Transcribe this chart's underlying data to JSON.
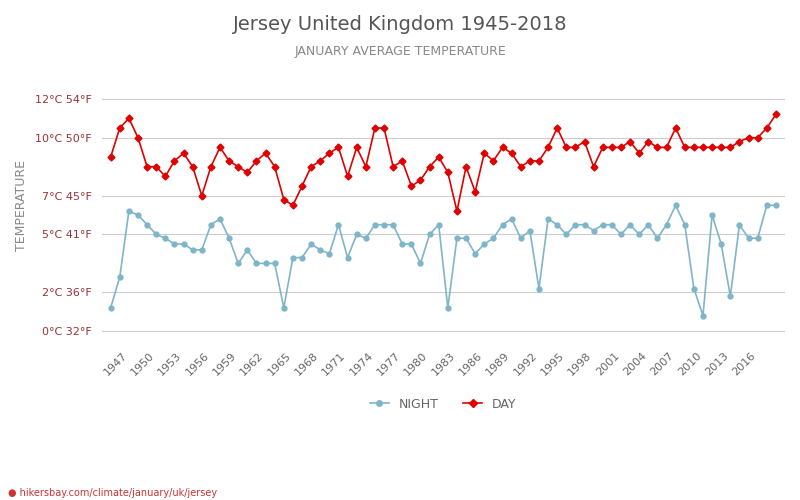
{
  "title": "Jersey United Kingdom 1945-2018",
  "subtitle": "JANUARY AVERAGE TEMPERATURE",
  "ylabel": "TEMPERATURE",
  "xlabel_url": "hikersbay.com/climate/january/uk/jersey",
  "years": [
    1945,
    1946,
    1947,
    1948,
    1949,
    1950,
    1951,
    1952,
    1953,
    1954,
    1955,
    1956,
    1957,
    1958,
    1959,
    1960,
    1961,
    1962,
    1963,
    1964,
    1965,
    1966,
    1967,
    1968,
    1969,
    1970,
    1971,
    1972,
    1973,
    1974,
    1975,
    1976,
    1977,
    1978,
    1979,
    1980,
    1981,
    1982,
    1983,
    1984,
    1985,
    1986,
    1987,
    1988,
    1989,
    1990,
    1991,
    1992,
    1993,
    1994,
    1995,
    1996,
    1997,
    1998,
    1999,
    2000,
    2001,
    2002,
    2003,
    2004,
    2005,
    2006,
    2007,
    2008,
    2009,
    2010,
    2011,
    2012,
    2013,
    2014,
    2015,
    2016,
    2017,
    2018
  ],
  "day_temps": [
    9.0,
    10.5,
    11.0,
    10.0,
    8.5,
    8.5,
    8.0,
    8.8,
    9.2,
    8.5,
    7.0,
    8.5,
    9.5,
    8.8,
    8.5,
    8.2,
    8.8,
    9.2,
    8.5,
    6.8,
    6.5,
    7.5,
    8.5,
    8.8,
    9.2,
    9.5,
    8.0,
    9.5,
    8.5,
    10.5,
    10.5,
    8.5,
    8.8,
    7.5,
    7.8,
    8.5,
    9.0,
    8.2,
    6.2,
    8.5,
    7.2,
    9.2,
    8.8,
    9.5,
    9.2,
    8.5,
    8.8,
    8.8,
    9.5,
    10.5,
    9.5,
    9.5,
    9.8,
    8.5,
    9.5,
    9.5,
    9.5,
    9.8,
    9.2,
    9.8,
    9.5,
    9.5,
    10.5,
    9.5,
    9.5,
    9.5,
    9.5,
    9.5,
    9.5,
    9.8,
    10.0,
    10.0,
    10.5,
    11.2
  ],
  "night_temps": [
    1.2,
    2.8,
    6.2,
    6.0,
    5.5,
    5.0,
    4.8,
    4.5,
    4.5,
    4.2,
    4.2,
    5.5,
    5.8,
    4.8,
    3.5,
    4.2,
    3.5,
    3.5,
    3.5,
    1.2,
    3.8,
    3.8,
    4.5,
    4.2,
    4.0,
    5.5,
    3.8,
    5.0,
    4.8,
    5.5,
    5.5,
    5.5,
    4.5,
    4.5,
    3.5,
    5.0,
    5.5,
    1.2,
    4.8,
    4.8,
    4.0,
    4.5,
    4.8,
    5.5,
    5.8,
    4.8,
    5.2,
    2.2,
    5.8,
    5.5,
    5.0,
    5.5,
    5.5,
    5.2,
    5.5,
    5.5,
    5.0,
    5.5,
    5.0,
    5.5,
    4.8,
    5.5,
    6.5,
    5.5,
    2.2,
    0.8,
    6.0,
    4.5,
    1.8,
    5.5,
    4.8,
    4.8,
    6.5,
    6.5
  ],
  "day_color": "#e00000",
  "night_color": "#7fb5c8",
  "bg_color": "#ffffff",
  "grid_color": "#cccccc",
  "yticks_c": [
    0,
    2,
    5,
    7,
    10,
    12
  ],
  "yticks_f": [
    32,
    36,
    41,
    45,
    50,
    54
  ],
  "ylim": [
    -0.5,
    13.5
  ],
  "title_color": "#555555",
  "subtitle_color": "#888888",
  "ylabel_color": "#888888",
  "tick_color": "#993333",
  "url_color": "#cc3333",
  "legend_night_label": "NIGHT",
  "legend_day_label": "DAY"
}
